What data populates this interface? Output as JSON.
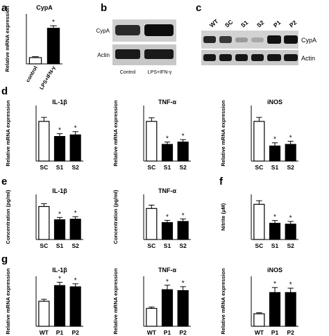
{
  "panel_letters": [
    "a",
    "b",
    "c",
    "d",
    "e",
    "f",
    "g"
  ],
  "blot_b": {
    "rows": [
      "CypA",
      "Actin"
    ],
    "lanes": [
      "Control",
      "LPS+IFN-γ"
    ]
  },
  "blot_c": {
    "rows": [
      "CypA",
      "Actin"
    ],
    "lanes": [
      "WT",
      "SC",
      "S1",
      "S2",
      "P1",
      "P2"
    ]
  },
  "sig_marker": "*",
  "chart_data": [
    {
      "panel": "a",
      "type": "bar",
      "title": "CypA",
      "ylabel": "Relative mRNA expression",
      "xlabel": "",
      "categories": [
        "control",
        "LPS+IFN-γ"
      ],
      "values": [
        1.0,
        5.7
      ],
      "errors": [
        0.15,
        0.4
      ],
      "fills": [
        "#ffffff",
        "#000000"
      ],
      "significant": [
        false,
        true
      ],
      "ylim": [
        0,
        8
      ],
      "rotated_labels": true
    },
    {
      "panel": "d",
      "type": "bar",
      "title": "IL-1β",
      "ylabel": "Relative mRNA expression",
      "xlabel": "",
      "categories": [
        "SC",
        "S1",
        "S2"
      ],
      "values": [
        1.0,
        0.62,
        0.66
      ],
      "errors": [
        0.1,
        0.07,
        0.08
      ],
      "fills": [
        "#ffffff",
        "#000000",
        "#000000"
      ],
      "significant": [
        false,
        true,
        true
      ],
      "ylim": [
        0,
        1.4
      ]
    },
    {
      "panel": "d",
      "type": "bar",
      "title": "TNF-α",
      "ylabel": "Relative mRNA expression",
      "xlabel": "",
      "categories": [
        "SC",
        "S1",
        "S2"
      ],
      "values": [
        1.0,
        0.42,
        0.48
      ],
      "errors": [
        0.09,
        0.06,
        0.06
      ],
      "fills": [
        "#ffffff",
        "#000000",
        "#000000"
      ],
      "significant": [
        false,
        true,
        true
      ],
      "ylim": [
        0,
        1.4
      ]
    },
    {
      "panel": "d",
      "type": "bar",
      "title": "iNOS",
      "ylabel": "Relative mRNA expression",
      "xlabel": "",
      "categories": [
        "SC",
        "S1",
        "S2"
      ],
      "values": [
        1.0,
        0.38,
        0.42
      ],
      "errors": [
        0.1,
        0.08,
        0.08
      ],
      "fills": [
        "#ffffff",
        "#000000",
        "#000000"
      ],
      "significant": [
        false,
        true,
        true
      ],
      "ylim": [
        0,
        1.4
      ]
    },
    {
      "panel": "e",
      "type": "bar",
      "title": "IL-1β",
      "ylabel": "Concentration (pg/ml)",
      "xlabel": "",
      "categories": [
        "SC",
        "S1",
        "S2"
      ],
      "values": [
        117,
        70,
        72
      ],
      "errors": [
        10,
        8,
        9
      ],
      "fills": [
        "#ffffff",
        "#000000",
        "#000000"
      ],
      "significant": [
        false,
        true,
        true
      ],
      "ylim": [
        0,
        160
      ]
    },
    {
      "panel": "e",
      "type": "bar",
      "title": "TNF-α",
      "ylabel": "Concentration (pg/ml)",
      "xlabel": "",
      "categories": [
        "SC",
        "S1",
        "S2"
      ],
      "values": [
        550,
        300,
        320
      ],
      "errors": [
        60,
        40,
        45
      ],
      "fills": [
        "#ffffff",
        "#000000",
        "#000000"
      ],
      "significant": [
        false,
        true,
        true
      ],
      "ylim": [
        0,
        800
      ]
    },
    {
      "panel": "f",
      "type": "bar",
      "title": "",
      "ylabel": "Nitrite (μM)",
      "xlabel": "",
      "categories": [
        "SC",
        "S1",
        "S2"
      ],
      "values": [
        39,
        18,
        17
      ],
      "errors": [
        4,
        3,
        3
      ],
      "fills": [
        "#ffffff",
        "#000000",
        "#000000"
      ],
      "significant": [
        false,
        true,
        true
      ],
      "ylim": [
        0,
        50
      ]
    },
    {
      "panel": "g",
      "type": "bar",
      "title": "IL-1β",
      "ylabel": "Relative mRNA expression",
      "xlabel": "",
      "categories": [
        "WT",
        "P1",
        "P2"
      ],
      "values": [
        1.0,
        1.63,
        1.58
      ],
      "errors": [
        0.08,
        0.13,
        0.12
      ],
      "fills": [
        "#ffffff",
        "#000000",
        "#000000"
      ],
      "significant": [
        false,
        true,
        true
      ],
      "ylim": [
        0,
        2.0
      ]
    },
    {
      "panel": "g",
      "type": "bar",
      "title": "TNF-α",
      "ylabel": "Relative mRNA expression",
      "xlabel": "",
      "categories": [
        "WT",
        "P1",
        "P2"
      ],
      "values": [
        1.0,
        2.05,
        2.0
      ],
      "errors": [
        0.08,
        0.25,
        0.22
      ],
      "fills": [
        "#ffffff",
        "#000000",
        "#000000"
      ],
      "significant": [
        false,
        true,
        true
      ],
      "ylim": [
        0,
        2.8
      ]
    },
    {
      "panel": "g",
      "type": "bar",
      "title": "iNOS",
      "ylabel": "Relative mRNA expression",
      "xlabel": "",
      "categories": [
        "WT",
        "P1",
        "P2"
      ],
      "values": [
        1.0,
        2.7,
        2.7
      ],
      "errors": [
        0.08,
        0.4,
        0.35
      ],
      "fills": [
        "#ffffff",
        "#000000",
        "#000000"
      ],
      "significant": [
        false,
        true,
        true
      ],
      "ylim": [
        0,
        4.0
      ]
    }
  ]
}
